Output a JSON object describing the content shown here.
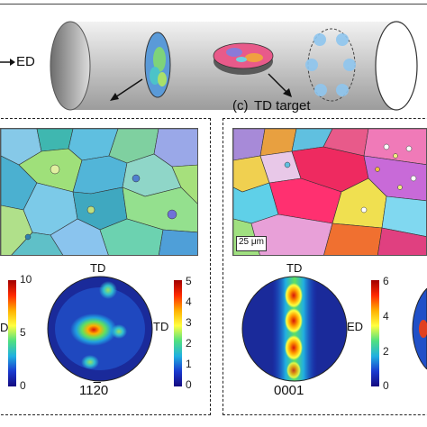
{
  "top": {
    "ed_label": "ED",
    "panel_c_label": "(c)",
    "panel_c_title": "TD target"
  },
  "left_panel": {
    "pole_label_top": "TD",
    "pole_label_right": "TD",
    "pole_label_left_fragment": "D",
    "plane_index": "11̅2̅0",
    "plane_index_parts": [
      "11",
      "2",
      "0"
    ],
    "colorbar_ticks_outer": [
      "10",
      "5",
      "0"
    ],
    "colorbar_ticks_inner": [
      "5",
      "4",
      "3",
      "2",
      "1",
      "0"
    ]
  },
  "right_panel": {
    "scale_bar_label": "25 μm",
    "pole_label_top": "TD",
    "pole_label_right": "ED",
    "plane_index": "0001",
    "colorbar_ticks": [
      "6",
      "4",
      "2",
      "0"
    ]
  },
  "colors": {
    "jet_low": "#1a2a9a",
    "jet_mid": "#33cc66",
    "jet_high": "#d41a1a",
    "cylinder_gray": "#c9c9c9"
  }
}
